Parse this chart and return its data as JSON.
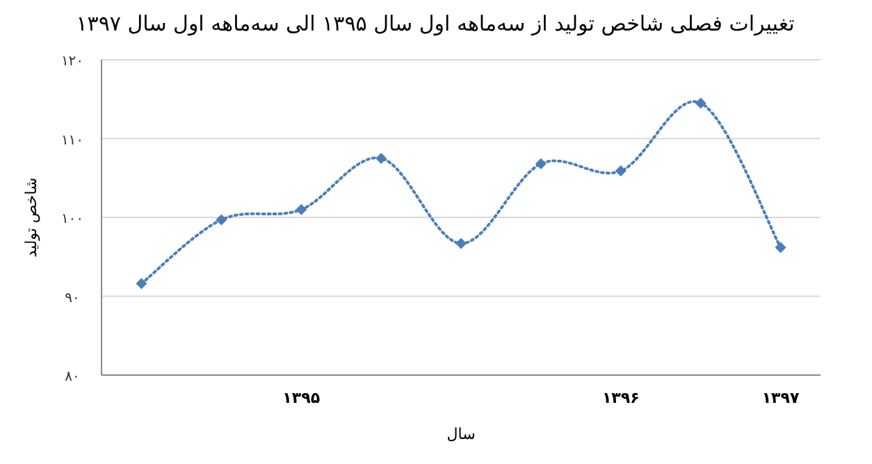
{
  "chart_data": {
    "type": "line",
    "title": "تغییرات فصلی شاخص تولید از سه‌ماهه اول سال ۱۳۹۵ الی سه‌ماهه اول سال ۱۳۹۷",
    "xlabel": "سال",
    "ylabel": "شاخص تولید",
    "categories": [
      null,
      null,
      "۱۳۹۵",
      null,
      null,
      null,
      "۱۳۹۶",
      null,
      "۱۳۹۷"
    ],
    "series": [
      {
        "color": "#4a7ebb",
        "values": [
          91.6,
          99.7,
          101,
          107.5,
          96.7,
          106.8,
          105.9,
          114.5,
          96.2
        ]
      }
    ],
    "ylim": [
      80,
      120
    ],
    "yticks": [
      {
        "value": 80,
        "label": "۸۰"
      },
      {
        "value": 90,
        "label": "۹۰"
      },
      {
        "value": 100,
        "label": "۱۰۰"
      },
      {
        "value": 110,
        "label": "۱۱۰"
      },
      {
        "value": 120,
        "label": "۱۲۰"
      }
    ],
    "grid": "y",
    "marker": "diamond",
    "line_style": "dotted"
  }
}
